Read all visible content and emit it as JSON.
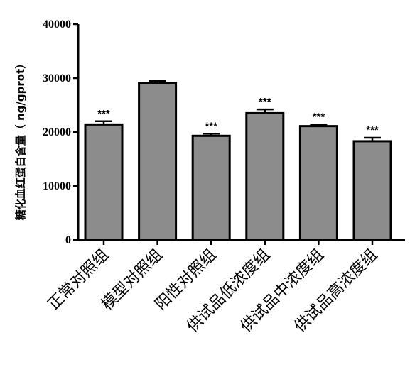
{
  "chart_data": {
    "type": "bar",
    "title": "",
    "xlabel": "",
    "ylabel": "糖化血红蛋白含量（ ng/gprot）",
    "ylim": [
      0,
      40000
    ],
    "yticks": [
      "0",
      "10000",
      "20000",
      "30000",
      "40000"
    ],
    "ytick_values": [
      0,
      10000,
      20000,
      30000,
      40000
    ],
    "categories": [
      "正常对照组",
      "模型对照组",
      "阳性对照组",
      "供试品低浓度组",
      "供试品中浓度组",
      "供试品高浓度组"
    ],
    "values": [
      21400,
      29100,
      19300,
      23500,
      21100,
      18300
    ],
    "errors": [
      600,
      400,
      400,
      700,
      250,
      650
    ],
    "significance": [
      "***",
      "",
      "***",
      "***",
      "***",
      "***"
    ],
    "bar_color": "#8c8c8c",
    "grid": false,
    "legend": "none"
  }
}
